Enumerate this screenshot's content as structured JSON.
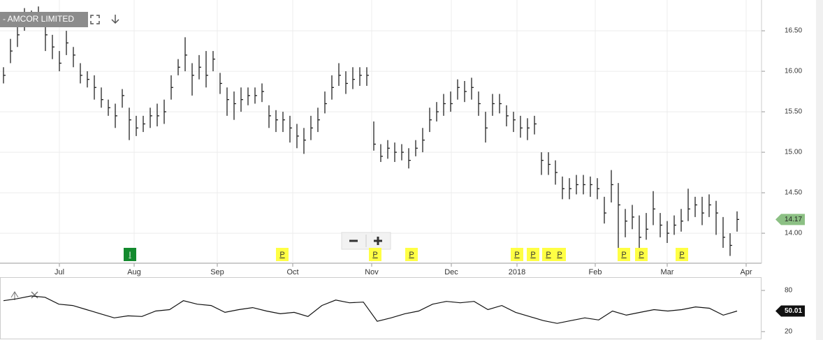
{
  "chart_data": [
    {
      "type": "ohlc",
      "title": "- AMCOR LIMITED",
      "high": [
        16.05,
        16.4,
        16.6,
        16.78,
        16.75,
        16.8,
        16.6,
        16.45,
        16.25,
        16.5,
        16.3,
        16.1,
        16.0,
        15.95,
        15.8,
        15.65,
        15.6,
        15.78,
        15.55,
        15.45,
        15.45,
        15.55,
        15.6,
        15.65,
        15.95,
        16.15,
        16.42,
        16.1,
        16.2,
        16.25,
        16.25,
        15.98,
        15.8,
        15.75,
        15.8,
        15.8,
        15.8,
        15.85,
        15.58,
        15.52,
        15.5,
        15.45,
        15.35,
        15.3,
        15.45,
        15.55,
        15.75,
        15.95,
        16.1,
        16.0,
        16.05,
        16.05,
        16.05,
        15.38,
        15.1,
        15.15,
        15.12,
        15.1,
        15.05,
        15.15,
        15.3,
        15.55,
        15.62,
        15.72,
        15.75,
        15.9,
        15.88,
        15.92,
        15.75,
        15.5,
        15.72,
        15.72,
        15.58,
        15.5,
        15.45,
        15.42,
        15.45,
        15.0,
        15.0,
        14.9,
        14.7,
        14.68,
        14.72,
        14.72,
        14.7,
        14.68,
        14.45,
        14.78,
        14.62,
        14.3,
        14.35,
        14.22,
        14.25,
        14.52,
        14.25,
        14.15,
        14.22,
        14.3,
        14.55,
        14.45,
        14.45,
        14.48,
        14.4,
        14.2,
        14.0,
        14.27
      ],
      "low": [
        15.85,
        16.1,
        16.3,
        16.5,
        16.55,
        16.55,
        16.25,
        16.15,
        16.0,
        16.2,
        16.05,
        15.85,
        15.8,
        15.65,
        15.55,
        15.45,
        15.3,
        15.55,
        15.15,
        15.2,
        15.25,
        15.3,
        15.32,
        15.35,
        15.65,
        15.95,
        16.0,
        15.7,
        15.9,
        15.8,
        16.0,
        15.72,
        15.45,
        15.4,
        15.5,
        15.58,
        15.6,
        15.62,
        15.3,
        15.25,
        15.25,
        15.12,
        15.05,
        14.98,
        15.15,
        15.25,
        15.48,
        15.65,
        15.82,
        15.72,
        15.78,
        15.82,
        15.82,
        15.02,
        14.88,
        14.92,
        14.88,
        14.9,
        14.8,
        14.95,
        15.0,
        15.25,
        15.38,
        15.45,
        15.5,
        15.65,
        15.62,
        15.65,
        15.45,
        15.12,
        15.45,
        15.48,
        15.32,
        15.25,
        15.18,
        15.15,
        15.22,
        14.72,
        14.72,
        14.6,
        14.42,
        14.42,
        14.48,
        14.48,
        14.45,
        14.42,
        14.12,
        14.38,
        13.8,
        13.95,
        14.05,
        13.8,
        13.92,
        14.1,
        13.95,
        13.88,
        13.98,
        14.02,
        14.15,
        14.2,
        14.1,
        14.2,
        13.98,
        13.82,
        13.72,
        14.02
      ],
      "close": [
        15.95,
        16.25,
        16.45,
        16.6,
        16.65,
        16.7,
        16.45,
        16.3,
        16.1,
        16.35,
        16.2,
        15.95,
        15.9,
        15.8,
        15.65,
        15.55,
        15.45,
        15.7,
        15.4,
        15.3,
        15.35,
        15.45,
        15.45,
        15.5,
        15.8,
        16.05,
        16.2,
        15.95,
        16.05,
        15.95,
        16.15,
        15.85,
        15.65,
        15.6,
        15.65,
        15.7,
        15.7,
        15.75,
        15.45,
        15.4,
        15.4,
        15.3,
        15.2,
        15.15,
        15.3,
        15.4,
        15.6,
        15.8,
        15.95,
        15.85,
        15.9,
        15.95,
        15.95,
        15.1,
        14.95,
        15.05,
        15.0,
        15.0,
        14.9,
        15.05,
        15.15,
        15.4,
        15.5,
        15.6,
        15.6,
        15.8,
        15.75,
        15.8,
        15.6,
        15.3,
        15.6,
        15.6,
        15.45,
        15.4,
        15.3,
        15.3,
        15.35,
        14.9,
        14.85,
        14.75,
        14.55,
        14.55,
        14.6,
        14.6,
        14.6,
        14.55,
        14.25,
        14.6,
        14.35,
        14.15,
        14.2,
        13.95,
        14.05,
        14.3,
        14.1,
        14.0,
        14.1,
        14.15,
        14.3,
        14.35,
        14.25,
        14.35,
        14.25,
        13.95,
        13.85,
        14.17
      ],
      "color": "#222222",
      "xlim": [
        -0.5,
        108.5
      ],
      "xticks": [
        {
          "value": 8,
          "label": "Jul"
        },
        {
          "value": 18.7,
          "label": "Aug"
        },
        {
          "value": 30.6,
          "label": "Sep"
        },
        {
          "value": 41.4,
          "label": "Oct"
        },
        {
          "value": 52.7,
          "label": "Nov"
        },
        {
          "value": 64.1,
          "label": "Dec"
        },
        {
          "value": 73.5,
          "label": "2018"
        },
        {
          "value": 84.7,
          "label": "Feb"
        },
        {
          "value": 95,
          "label": "Mar"
        },
        {
          "value": 106.3,
          "label": "Apr"
        }
      ],
      "ylim": [
        13.63,
        16.88
      ],
      "yticks": [
        {
          "value": 14,
          "label": "14.00"
        },
        {
          "value": 14.5,
          "label": "14.50"
        },
        {
          "value": 15,
          "label": "15.00"
        },
        {
          "value": 15.5,
          "label": "15.50"
        },
        {
          "value": 16,
          "label": "16.00"
        },
        {
          "value": 16.5,
          "label": "16.50"
        }
      ],
      "grid": true,
      "events": [
        {
          "label": "I",
          "x": 18.1,
          "color": "#138a2e"
        },
        {
          "label": "P",
          "x": 39.9,
          "color": "#ffff44"
        },
        {
          "label": "P",
          "x": 53.2,
          "color": "#ffff44"
        },
        {
          "label": "P",
          "x": 58.4,
          "color": "#ffff44"
        },
        {
          "label": "P",
          "x": 73.5,
          "color": "#ffff44"
        },
        {
          "label": "P",
          "x": 75.8,
          "color": "#ffff44"
        },
        {
          "label": "P",
          "x": 78,
          "color": "#ffff44"
        },
        {
          "label": "P",
          "x": 79.6,
          "color": "#ffff44"
        },
        {
          "label": "P",
          "x": 88.8,
          "color": "#ffff44"
        },
        {
          "label": "P",
          "x": 91.3,
          "color": "#ffff44"
        },
        {
          "label": "P",
          "x": 97.1,
          "color": "#ffff44"
        }
      ]
    },
    {
      "type": "line",
      "color": "#111111",
      "values": [
        65,
        68,
        72,
        70,
        60,
        58,
        52,
        46,
        40,
        43,
        42,
        50,
        52,
        65,
        60,
        58,
        48,
        52,
        55,
        50,
        46,
        48,
        42,
        58,
        66,
        62,
        63,
        35,
        40,
        46,
        50,
        60,
        64,
        62,
        64,
        52,
        58,
        48,
        42,
        36,
        32,
        36,
        40,
        37,
        50,
        44,
        48,
        52,
        50,
        52,
        56,
        54,
        44,
        50.01
      ],
      "ylim": [
        9.8,
        98.3
      ],
      "yticks": [
        20,
        80
      ]
    }
  ]
}
